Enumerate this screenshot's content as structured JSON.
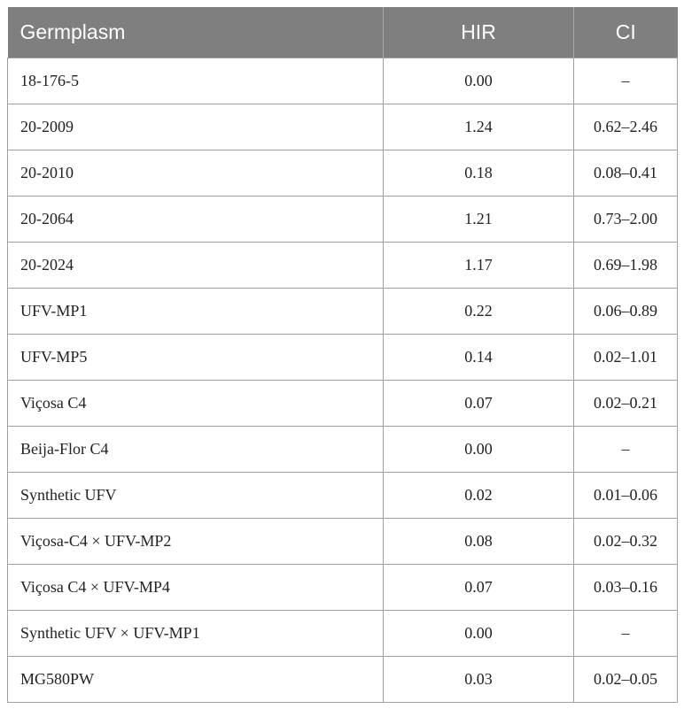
{
  "table": {
    "headers": [
      "Germplasm",
      "HIR",
      "CI"
    ],
    "rows": [
      {
        "germplasm": "18-176-5",
        "hir": "0.00",
        "ci": "–"
      },
      {
        "germplasm": "20-2009",
        "hir": "1.24",
        "ci": "0.62–2.46"
      },
      {
        "germplasm": "20-2010",
        "hir": "0.18",
        "ci": "0.08–0.41"
      },
      {
        "germplasm": "20-2064",
        "hir": "1.21",
        "ci": "0.73–2.00"
      },
      {
        "germplasm": "20-2024",
        "hir": "1.17",
        "ci": "0.69–1.98"
      },
      {
        "germplasm": "UFV-MP1",
        "hir": "0.22",
        "ci": "0.06–0.89"
      },
      {
        "germplasm": "UFV-MP5",
        "hir": "0.14",
        "ci": "0.02–1.01"
      },
      {
        "germplasm": "Viçosa C4",
        "hir": "0.07",
        "ci": "0.02–0.21"
      },
      {
        "germplasm": "Beija-Flor C4",
        "hir": "0.00",
        "ci": "–"
      },
      {
        "germplasm": "Synthetic UFV",
        "hir": "0.02",
        "ci": "0.01–0.06"
      },
      {
        "germplasm": "Viçosa-C4 × UFV-MP2",
        "hir": "0.08",
        "ci": "0.02–0.32"
      },
      {
        "germplasm": "Viçosa C4 × UFV-MP4",
        "hir": "0.07",
        "ci": "0.03–0.16"
      },
      {
        "germplasm": "Synthetic UFV × UFV-MP1",
        "hir": "0.00",
        "ci": "–"
      },
      {
        "germplasm": "MG580PW",
        "hir": "0.03",
        "ci": "0.02–0.05"
      }
    ]
  }
}
